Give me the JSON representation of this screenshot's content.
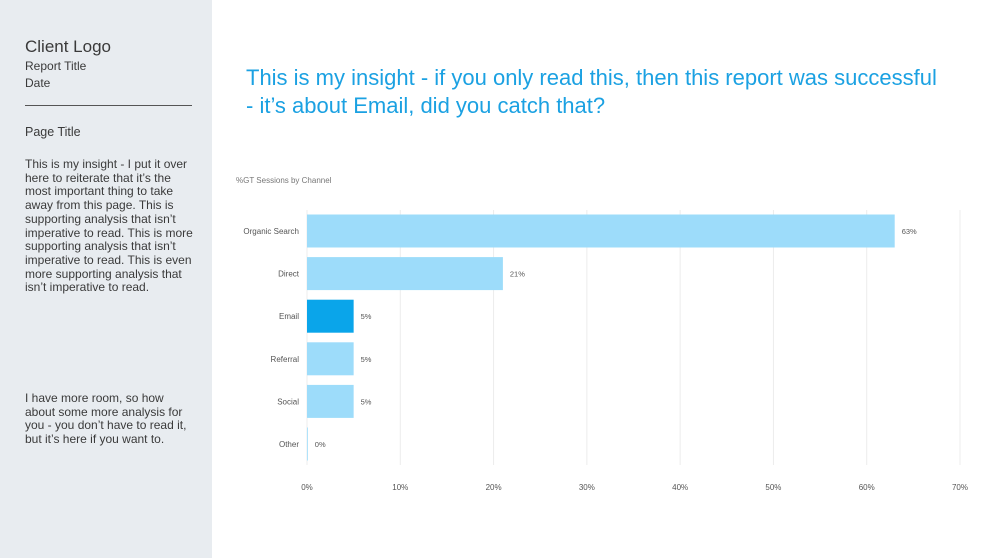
{
  "sidebar": {
    "client_logo": "Client Logo",
    "report_title": "Report Title",
    "date": "Date",
    "page_title": "Page Title",
    "paragraph1": "This is my insight - I put it over here to reiterate that it’s the most important thing to take away from this page. This is supporting analysis that isn’t imperative to read. This is more supporting analysis that isn’t imperative to read. This is even more supporting analysis that isn’t imperative to read.",
    "paragraph2": "I have more room, so how about some more analysis for you - you don’t have to read it, but it’s here if you want to."
  },
  "main": {
    "insight": "This is my insight - if you only read this, then this report was successful - it’s about Email, did you catch that?"
  },
  "colors": {
    "bar": "#9ddcfa",
    "highlight": "#0aa5ea",
    "grid": "#ececec",
    "label": "#555555"
  },
  "chart_data": {
    "type": "bar",
    "orientation": "horizontal",
    "title": "%GT Sessions by Channel",
    "categories": [
      "Organic Search",
      "Direct",
      "Email",
      "Referral",
      "Social",
      "Other"
    ],
    "values": [
      63,
      21,
      5,
      5,
      5,
      0
    ],
    "value_labels": [
      "63%",
      "21%",
      "5%",
      "5%",
      "5%",
      "0%"
    ],
    "highlight": "Email",
    "xlim": [
      0,
      70
    ],
    "xticks": [
      "0%",
      "10%",
      "20%",
      "30%",
      "40%",
      "50%",
      "60%",
      "70%"
    ],
    "grid": true,
    "legend": "none"
  }
}
